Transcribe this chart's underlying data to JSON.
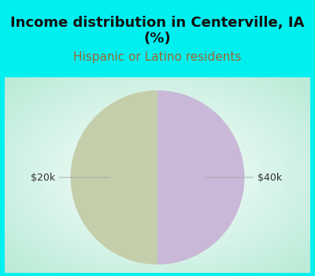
{
  "title": "Income distribution in Centerville, IA\n(%)",
  "subtitle": "Hispanic or Latino residents",
  "slices": [
    50,
    50
  ],
  "labels": [
    "$20k",
    "$40k"
  ],
  "colors": [
    "#c5ceaa",
    "#c9b8d8"
  ],
  "background_color": "#00f0f0",
  "title_fontsize": 13,
  "subtitle_fontsize": 11,
  "subtitle_color": "#996633",
  "title_color": "#111111",
  "label_color": "#333333",
  "label_fontsize": 9,
  "startangle": 90,
  "gradient_center": "#ffffff",
  "gradient_edge": "#b8e8d8",
  "border_color": "#00f0f0",
  "border_width": 6
}
